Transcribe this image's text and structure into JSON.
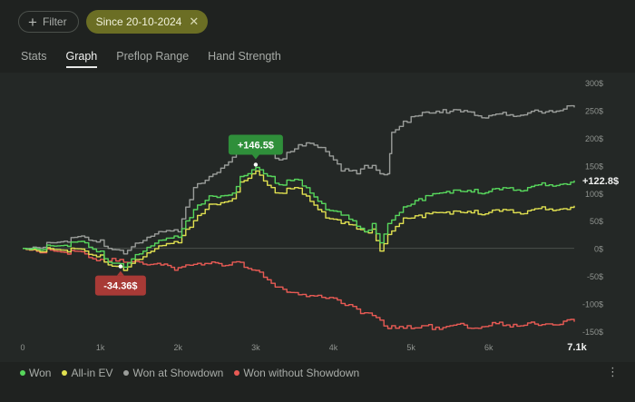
{
  "filter": {
    "label": "Filter"
  },
  "chip": {
    "label": "Since 20-10-2024",
    "close": "✕"
  },
  "tabs": [
    {
      "label": "Stats",
      "active": false
    },
    {
      "label": "Graph",
      "active": true
    },
    {
      "label": "Preflop Range",
      "active": false
    },
    {
      "label": "Hand Strength",
      "active": false
    }
  ],
  "chart_data": {
    "type": "line",
    "xlim": [
      0,
      7100
    ],
    "ylim": [
      -150,
      300
    ],
    "x_ticks": [
      "0",
      "1k",
      "2k",
      "3k",
      "4k",
      "5k",
      "6k",
      "7.1k"
    ],
    "y_ticks": [
      "300$",
      "250$",
      "200$",
      "150$",
      "100$",
      "50$",
      "0$",
      "-50$",
      "-100$",
      "-150$"
    ],
    "annotations": {
      "max_label": "+146.5$",
      "max_x": 3000,
      "max_y": 146.5,
      "min_label": "-34.36$",
      "min_x": 1260,
      "min_y": -34.36,
      "end_label": "+122.8$"
    },
    "series": [
      {
        "name": "Won",
        "color": "#57d65c",
        "x": [
          0,
          400,
          800,
          1000,
          1100,
          1300,
          1500,
          1800,
          2000,
          2200,
          2400,
          2700,
          2800,
          3000,
          3200,
          3300,
          3500,
          3700,
          3900,
          4100,
          4300,
          4400,
          4500,
          4600,
          4700,
          4900,
          5100,
          5500,
          6000,
          6500,
          7100
        ],
        "y": [
          0,
          4,
          10,
          -5,
          -25,
          -34,
          -10,
          15,
          20,
          70,
          95,
          100,
          130,
          146.5,
          130,
          115,
          125,
          100,
          70,
          60,
          40,
          30,
          45,
          10,
          45,
          75,
          90,
          100,
          103,
          110,
          122.8
        ]
      },
      {
        "name": "All-in EV",
        "color": "#e0e050",
        "x": [
          0,
          400,
          800,
          1000,
          1100,
          1300,
          1500,
          1800,
          2000,
          2200,
          2400,
          2700,
          2800,
          3000,
          3200,
          3300,
          3500,
          3700,
          3900,
          4100,
          4300,
          4400,
          4500,
          4600,
          4700,
          4900,
          5100,
          5500,
          6000,
          6500,
          7100
        ],
        "y": [
          0,
          -2,
          -5,
          -12,
          -30,
          -40,
          -20,
          5,
          10,
          50,
          80,
          90,
          120,
          140,
          110,
          100,
          110,
          85,
          55,
          45,
          35,
          30,
          35,
          -5,
          25,
          55,
          60,
          62,
          65,
          68,
          77
        ]
      },
      {
        "name": "Won at Showdown",
        "color": "#9a9d9a",
        "x": [
          0,
          400,
          800,
          1000,
          1100,
          1300,
          1500,
          1800,
          2000,
          2200,
          2400,
          2700,
          2800,
          3000,
          3200,
          3300,
          3500,
          3700,
          3900,
          4100,
          4300,
          4400,
          4500,
          4600,
          4700,
          4750,
          4900,
          5100,
          5500,
          6000,
          6500,
          7100
        ],
        "y": [
          0,
          10,
          20,
          15,
          0,
          -10,
          10,
          30,
          30,
          110,
          130,
          165,
          185,
          200,
          175,
          160,
          180,
          190,
          175,
          140,
          135,
          150,
          150,
          135,
          135,
          210,
          230,
          240,
          248,
          240,
          245,
          255
        ]
      },
      {
        "name": "Won without Showdown",
        "color": "#e85a54",
        "x": [
          0,
          400,
          800,
          1000,
          1300,
          1600,
          2000,
          2300,
          2700,
          3000,
          3300,
          3500,
          3800,
          4000,
          4300,
          4600,
          4700,
          5000,
          5500,
          6000,
          6500,
          7100
        ],
        "y": [
          0,
          -5,
          -10,
          -20,
          -25,
          -30,
          -35,
          -30,
          -25,
          -40,
          -70,
          -80,
          -85,
          -90,
          -110,
          -130,
          -145,
          -145,
          -140,
          -140,
          -135,
          -133
        ]
      }
    ]
  },
  "more_icon": "ellipsis-vertical-icon"
}
